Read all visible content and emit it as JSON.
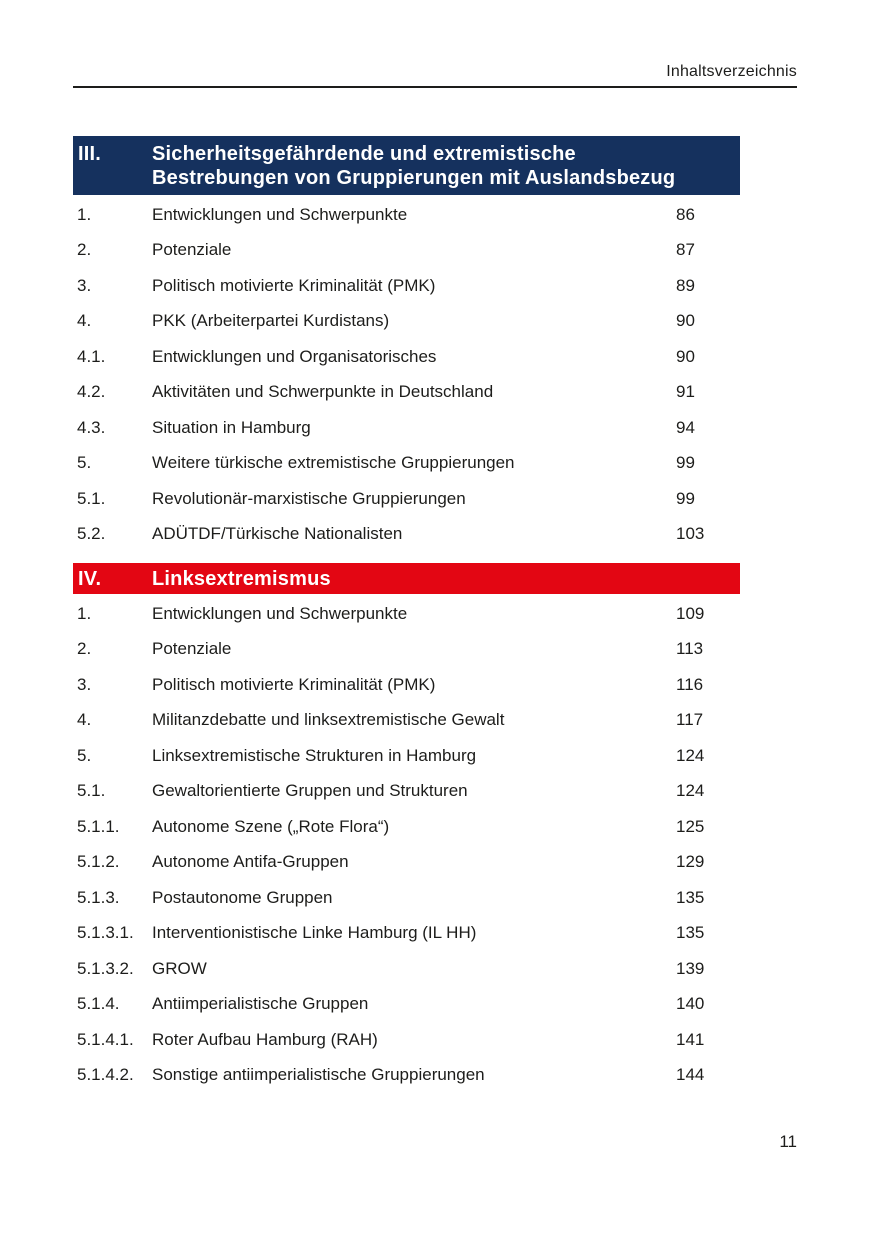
{
  "page": {
    "header_label": "Inhaltsverzeichnis",
    "page_number": "11"
  },
  "colors": {
    "navy": "#15315e",
    "red": "#e30613",
    "text": "#1d1d1b"
  },
  "sections": [
    {
      "numeral": "III.",
      "theme": "navy",
      "title_lines": [
        "Sicherheitsgefährdende und extremistische",
        "Bestrebungen von Gruppierungen mit Auslandsbezug"
      ],
      "entries": [
        {
          "num": "1.",
          "title": "Entwicklungen und Schwerpunkte",
          "page": "86"
        },
        {
          "num": "2.",
          "title": "Potenziale",
          "page": "87"
        },
        {
          "num": "3.",
          "title": "Politisch motivierte Kriminalität (PMK)",
          "page": "89"
        },
        {
          "num": "4.",
          "title": "PKK (Arbeiterpartei Kurdistans)",
          "page": "90"
        },
        {
          "num": "4.1.",
          "title": "Entwicklungen und Organisatorisches",
          "page": "90"
        },
        {
          "num": "4.2.",
          "title": "Aktivitäten und Schwerpunkte in Deutschland",
          "page": "91"
        },
        {
          "num": "4.3.",
          "title": "Situation in Hamburg",
          "page": "94"
        },
        {
          "num": "5.",
          "title": "Weitere türkische extremistische Gruppierungen",
          "page": "99"
        },
        {
          "num": "5.1.",
          "title": "Revolutionär-marxistische Gruppierungen",
          "page": "99"
        },
        {
          "num": "5.2.",
          "title": "ADÜTDF/Türkische Nationalisten",
          "page": "103"
        }
      ]
    },
    {
      "numeral": "IV.",
      "theme": "red",
      "title_lines": [
        "Linksextremismus"
      ],
      "entries": [
        {
          "num": "1.",
          "title": "Entwicklungen und Schwerpunkte",
          "page": "109"
        },
        {
          "num": "2.",
          "title": "Potenziale",
          "page": "113"
        },
        {
          "num": "3.",
          "title": "Politisch motivierte Kriminalität (PMK)",
          "page": "116"
        },
        {
          "num": "4.",
          "title": "Militanzdebatte und linksextremistische Gewalt",
          "page": "117"
        },
        {
          "num": "5.",
          "title": "Linksextremistische Strukturen in Hamburg",
          "page": "124"
        },
        {
          "num": "5.1.",
          "title": "Gewaltorientierte Gruppen und Strukturen",
          "page": "124"
        },
        {
          "num": "5.1.1.",
          "title": "Autonome Szene („Rote Flora“)",
          "page": "125"
        },
        {
          "num": "5.1.2.",
          "title": "Autonome Antifa-Gruppen",
          "page": "129"
        },
        {
          "num": "5.1.3.",
          "title": "Postautonome Gruppen",
          "page": "135"
        },
        {
          "num": "5.1.3.1.",
          "title": "Interventionistische Linke Hamburg (IL HH)",
          "page": "135"
        },
        {
          "num": "5.1.3.2.",
          "title": "GROW",
          "page": "139"
        },
        {
          "num": "5.1.4.",
          "title": "Antiimperialistische Gruppen",
          "page": "140"
        },
        {
          "num": "5.1.4.1.",
          "title": "Roter Aufbau Hamburg (RAH)",
          "page": "141"
        },
        {
          "num": "5.1.4.2.",
          "title": "Sonstige antiimperialistische Gruppierungen",
          "page": "144"
        }
      ]
    }
  ]
}
